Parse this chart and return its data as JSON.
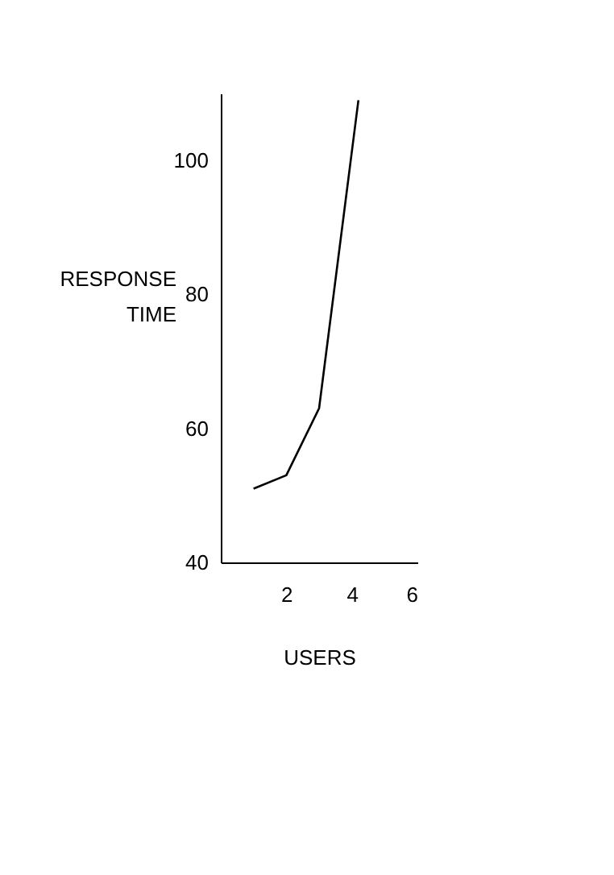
{
  "chart_data": {
    "type": "line",
    "xlabel": "USERS",
    "ylabel": "RESPONSE TIME",
    "x": [
      1,
      2,
      3,
      4.2
    ],
    "series": [
      {
        "color": "#000000",
        "values": [
          51,
          53,
          63,
          109
        ]
      }
    ],
    "xlim": [
      0,
      6
    ],
    "xticks": [
      2,
      4,
      6
    ],
    "ylim": [
      40,
      110
    ],
    "yticks": [
      40,
      60,
      80,
      100
    ],
    "grid": false,
    "legend": false,
    "marker": "none",
    "line_style": "solid"
  }
}
